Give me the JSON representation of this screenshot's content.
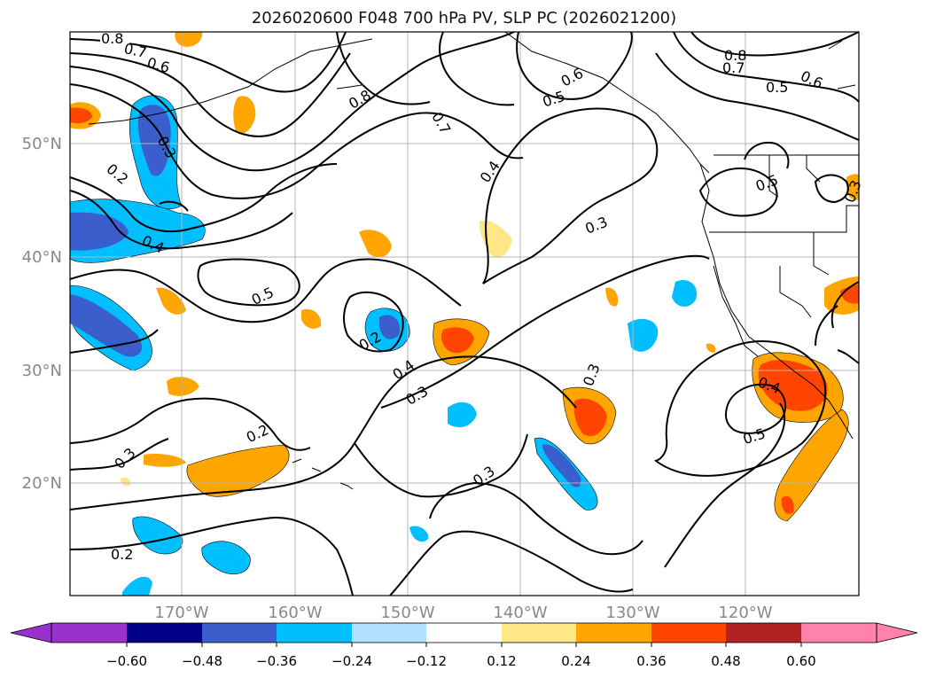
{
  "title": "2026020600 F048 700 hPa PV, SLP PC (2026021200)",
  "lon_labels": [
    "170°W",
    "160°W",
    "150°W",
    "140°W",
    "130°W",
    "120°W"
  ],
  "lat_labels": [
    "50°N",
    "40°N",
    "30°N",
    "20°N"
  ],
  "colorbar": {
    "ticks": [
      "−0.60",
      "−0.48",
      "−0.36",
      "−0.24",
      "−0.12",
      "0.12",
      "0.24",
      "0.36",
      "0.48",
      "0.60"
    ],
    "colors": [
      "#9932cc",
      "#00008b",
      "#3a5fcd",
      "#00bfff",
      "#b0e2ff",
      "#ffffff",
      "#ffe787",
      "#ffa500",
      "#ff4500",
      "#b22222",
      "#ff82ab"
    ]
  },
  "contour_labels": [
    {
      "id": "c1",
      "text": "0.8"
    },
    {
      "id": "c2",
      "text": "0.7"
    },
    {
      "id": "c3",
      "text": "0.6"
    },
    {
      "id": "c4",
      "text": "0.3"
    },
    {
      "id": "c5",
      "text": "0.2"
    },
    {
      "id": "c6",
      "text": "0.4"
    },
    {
      "id": "c7",
      "text": "0.5"
    },
    {
      "id": "c8",
      "text": "0.8"
    },
    {
      "id": "c9",
      "text": "0.7"
    },
    {
      "id": "c10",
      "text": "0.6"
    },
    {
      "id": "c11",
      "text": "0.5"
    },
    {
      "id": "c12",
      "text": "0.4"
    },
    {
      "id": "c13",
      "text": "0.3"
    },
    {
      "id": "c14",
      "text": "0.8"
    },
    {
      "id": "c15",
      "text": "0.7"
    },
    {
      "id": "c16",
      "text": "0.5"
    },
    {
      "id": "c17",
      "text": "0.6"
    },
    {
      "id": "c18",
      "text": "0.5"
    },
    {
      "id": "c19",
      "text": "0.3"
    },
    {
      "id": "c20",
      "text": "0.2"
    },
    {
      "id": "c21",
      "text": "0.4"
    },
    {
      "id": "c22",
      "text": "0.3"
    },
    {
      "id": "c23",
      "text": "0.2"
    },
    {
      "id": "c24",
      "text": "0.3"
    },
    {
      "id": "c25",
      "text": "0.2"
    },
    {
      "id": "c26",
      "text": "0.3"
    },
    {
      "id": "c27",
      "text": "0.4"
    },
    {
      "id": "c28",
      "text": "0.5"
    }
  ]
}
